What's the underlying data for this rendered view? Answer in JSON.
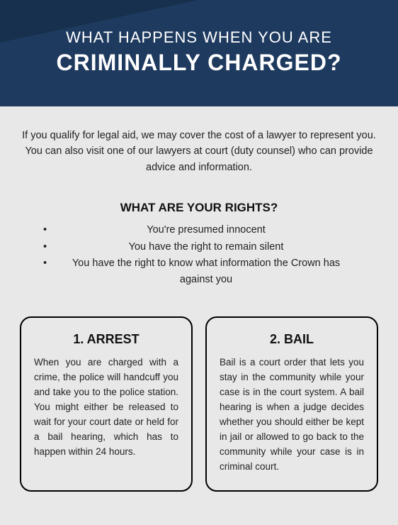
{
  "header": {
    "line1": "WHAT HAPPENS WHEN YOU ARE",
    "line2": "CRIMINALLY CHARGED?",
    "bg_color": "#1e3a5f",
    "triangle_color": "#16304d",
    "text_color": "#ffffff"
  },
  "intro": "If you qualify for legal aid, we may cover the cost of a lawyer to represent you. You can also visit one of our lawyers at court (duty counsel) who can provide advice and information.",
  "rights": {
    "heading": "WHAT ARE YOUR RIGHTS?",
    "items": [
      "You're presumed innocent",
      "You have the right to remain silent",
      "You have the right to know what information the Crown has against you"
    ]
  },
  "boxes": [
    {
      "title": "1.  ARREST",
      "text": "When you are charged with a crime, the police will handcuff you and take you to the police station. You might either be released to wait for your court date or held for a bail hearing, which has to happen within 24 hours."
    },
    {
      "title": "2. BAIL",
      "text": "Bail is a court order that lets you stay in the community while your case is in the court system. A bail hearing is when a judge decides whether you should either be kept in jail or allowed to go back to the community while your case is in criminal court."
    }
  ],
  "styles": {
    "page_bg": "#e8e8e8",
    "text_color": "#222222",
    "box_border": "#000000",
    "box_radius": 16
  }
}
